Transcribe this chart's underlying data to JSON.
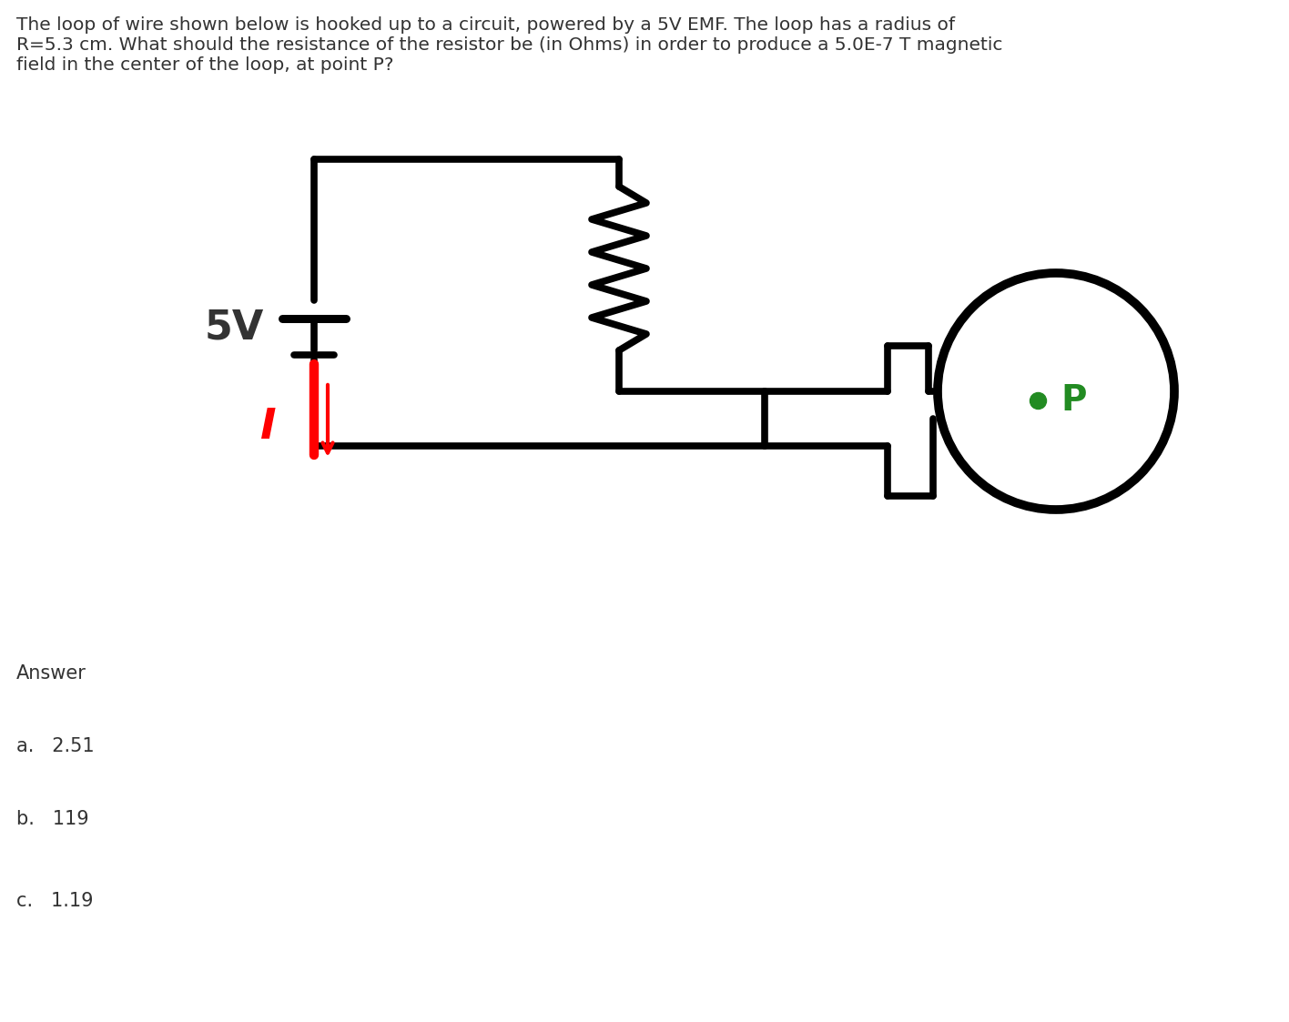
{
  "title_text": "The loop of wire shown below is hooked up to a circuit, powered by a 5V EMF. The loop has a radius of\nR=5.3 cm. What should the resistance of the resistor be (in Ohms) in order to produce a 5.0E-7 T magnetic\nfield in the center of the loop, at point P?",
  "answer_label": "Answer",
  "choices": [
    "a.   2.51",
    "b.   119",
    "c.   1.19"
  ],
  "bg_color": "#ffffff",
  "text_color": "#333333",
  "circuit_color": "#000000",
  "current_color": "#ff0000",
  "dot_color": "#228B22",
  "P_color": "#228B22",
  "title_fontsize": 14.5,
  "answer_fontsize": 14,
  "choice_fontsize": 14,
  "lw": 5.5
}
